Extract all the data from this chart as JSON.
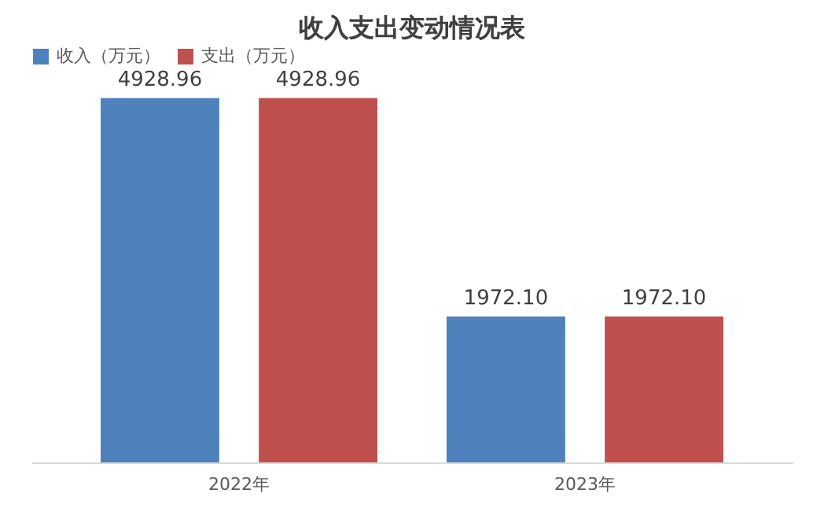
{
  "chart_data": {
    "type": "bar",
    "title": "收入支出变动情况表",
    "categories": [
      "2022年",
      "2023年"
    ],
    "series": [
      {
        "name": "收入（万元）",
        "color": "#4f81bd",
        "values": [
          4928.96,
          1972.1
        ],
        "value_labels": [
          "4928.96",
          "1972.10"
        ]
      },
      {
        "name": "支出（万元）",
        "color": "#c0504d",
        "values": [
          4928.96,
          1972.1
        ],
        "value_labels": [
          "4928.96",
          "1972.10"
        ]
      }
    ],
    "tick_labels": "x",
    "grid": false,
    "legend": "top"
  }
}
